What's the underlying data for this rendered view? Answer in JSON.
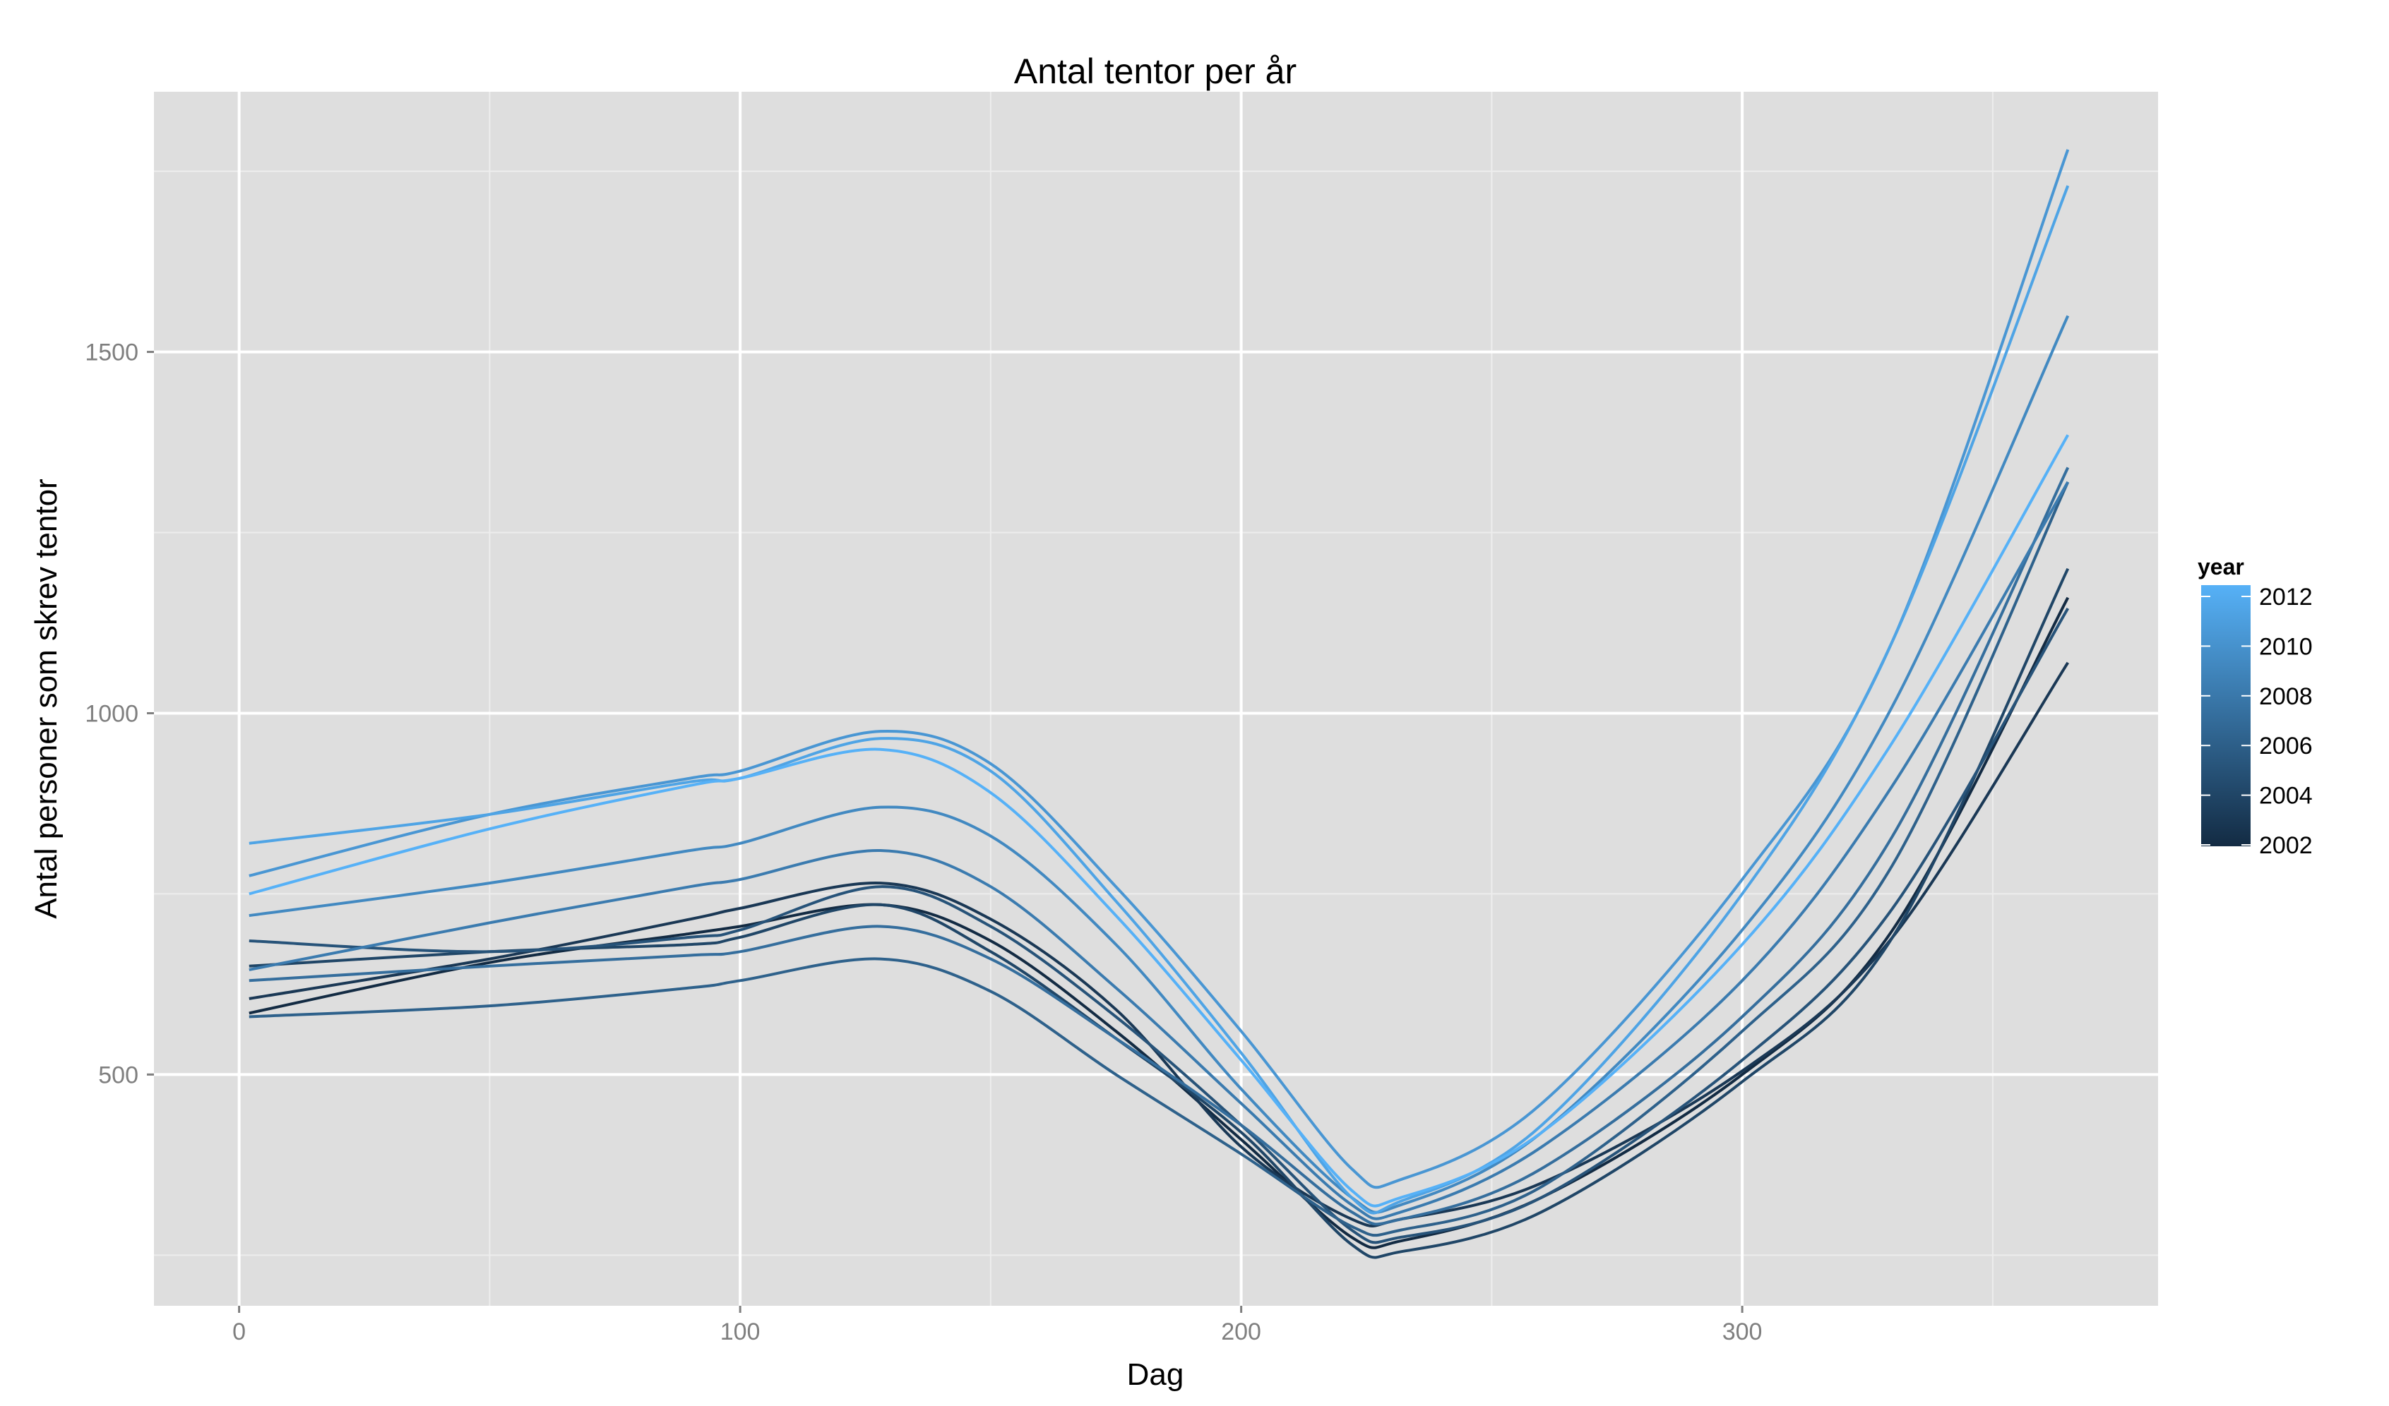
{
  "chart_data": {
    "type": "line",
    "title": "Antal tentor per år",
    "xlabel": "Dag",
    "ylabel": "Antal personer som skrev tentor",
    "xlim": [
      -17,
      383
    ],
    "ylim": [
      180,
      1860
    ],
    "x_ticks": [
      0,
      100,
      200,
      300
    ],
    "x_tick_labels": [
      "0",
      "100",
      "200",
      "300"
    ],
    "y_ticks": [
      500,
      1000,
      1500
    ],
    "y_tick_labels": [
      "500",
      "1000",
      "1500"
    ],
    "grid": true,
    "background": "#dedede",
    "legend": {
      "title": "year",
      "position": "right",
      "labels": [
        "2012",
        "2010",
        "2008",
        "2006",
        "2004",
        "2002"
      ],
      "values": [
        2012,
        2010,
        2008,
        2006,
        2004,
        2002
      ],
      "range": [
        2002,
        2012
      ],
      "colors": {
        "low": "#132b43",
        "high": "#56b1f7"
      }
    },
    "x": [
      2,
      50,
      90,
      100,
      128,
      150,
      175,
      200,
      222,
      232,
      260,
      300,
      330,
      365
    ],
    "series": [
      {
        "year": 2002,
        "values": [
          585,
          655,
          695,
          705,
          735,
          685,
          560,
          410,
          275,
          270,
          330,
          500,
          700,
          1160
        ]
      },
      {
        "year": 2003,
        "values": [
          605,
          660,
          715,
          730,
          765,
          715,
          590,
          400,
          300,
          300,
          350,
          505,
          690,
          1070
        ]
      },
      {
        "year": 2004,
        "values": [
          650,
          670,
          680,
          690,
          735,
          670,
          550,
          420,
          265,
          255,
          310,
          490,
          690,
          1200
        ]
      },
      {
        "year": 2005,
        "values": [
          685,
          670,
          690,
          700,
          760,
          705,
          580,
          430,
          285,
          275,
          330,
          520,
          730,
          1145
        ]
      },
      {
        "year": 2006,
        "values": [
          580,
          595,
          620,
          630,
          660,
          615,
          500,
          390,
          290,
          285,
          345,
          560,
          790,
          1320
        ]
      },
      {
        "year": 2007,
        "values": [
          630,
          650,
          665,
          670,
          705,
          660,
          550,
          430,
          310,
          300,
          370,
          580,
          830,
          1340
        ]
      },
      {
        "year": 2008,
        "values": [
          645,
          710,
          760,
          770,
          810,
          760,
          620,
          460,
          320,
          310,
          400,
          630,
          900,
          1320
        ]
      },
      {
        "year": 2009,
        "values": [
          720,
          765,
          810,
          820,
          870,
          830,
          680,
          480,
          330,
          320,
          420,
          700,
          1010,
          1550
        ]
      },
      {
        "year": 2010,
        "values": [
          775,
          860,
          910,
          920,
          975,
          930,
          760,
          560,
          370,
          355,
          460,
          770,
          1100,
          1780
        ]
      },
      {
        "year": 2011,
        "values": [
          820,
          860,
          905,
          910,
          965,
          920,
          740,
          530,
          330,
          325,
          430,
          750,
          1100,
          1730
        ]
      },
      {
        "year": 2012,
        "values": [
          750,
          840,
          900,
          910,
          950,
          890,
          720,
          520,
          340,
          330,
          420,
          680,
          960,
          1385
        ]
      }
    ]
  }
}
